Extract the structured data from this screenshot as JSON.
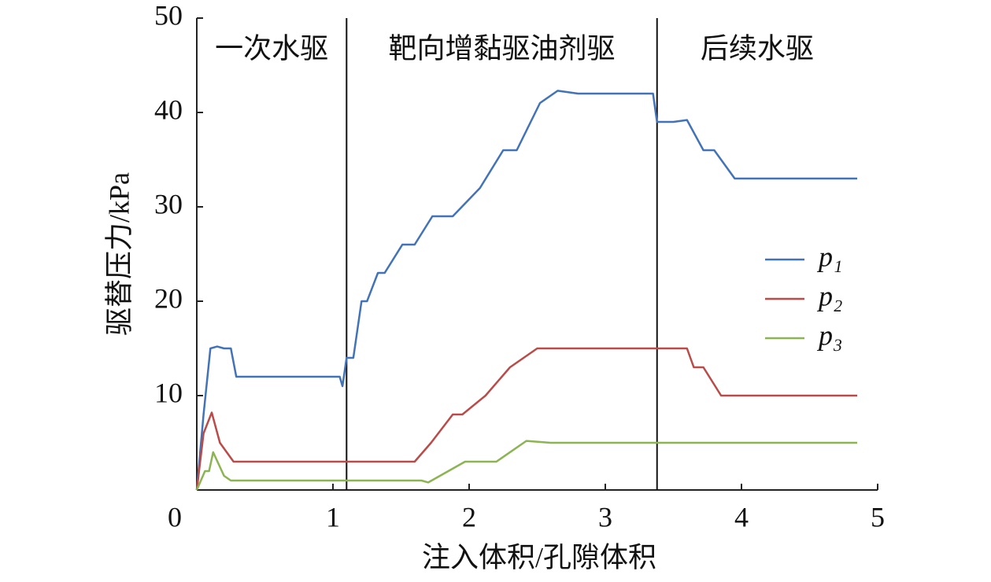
{
  "chart_data": {
    "type": "line",
    "xlabel": "注入体积/孔隙体积",
    "ylabel": "驱替压力/kPa",
    "xlim": [
      0,
      5
    ],
    "ylim": [
      0,
      50
    ],
    "xticks": [
      0,
      1,
      2,
      3,
      4,
      5
    ],
    "yticks": [
      10,
      20,
      30,
      40,
      50
    ],
    "phase_boundaries": [
      1.1,
      3.38
    ],
    "phase_labels": [
      "一次水驱",
      "靶向增黏驱油剂驱",
      "后续水驱"
    ],
    "series": [
      {
        "name": "p₁",
        "color": "#4273b8",
        "x": [
          0,
          0.05,
          0.1,
          0.15,
          0.2,
          0.25,
          0.29,
          0.35,
          1.05,
          1.07,
          1.1,
          1.15,
          1.21,
          1.25,
          1.33,
          1.38,
          1.51,
          1.6,
          1.73,
          1.88,
          2.08,
          2.25,
          2.35,
          2.52,
          2.65,
          2.8,
          3.3,
          3.35,
          3.38,
          3.5,
          3.6,
          3.72,
          3.8,
          3.95,
          4.1,
          4.85
        ],
        "values": [
          0,
          8,
          15,
          15.2,
          15,
          15,
          12,
          12,
          12,
          11,
          14,
          14,
          20,
          20,
          23,
          23,
          26,
          26,
          29,
          29,
          32,
          36,
          36,
          41,
          42.3,
          42,
          42,
          42,
          39,
          39,
          39.2,
          36,
          36,
          33,
          33,
          33
        ]
      },
      {
        "name": "p₂",
        "color": "#bb4b48",
        "x": [
          0,
          0.05,
          0.11,
          0.17,
          0.27,
          1.56,
          1.6,
          1.72,
          1.88,
          1.95,
          2.12,
          2.3,
          2.5,
          3.55,
          3.6,
          3.65,
          3.72,
          3.85,
          4.85
        ],
        "values": [
          0,
          6,
          8.2,
          5,
          3,
          3,
          3,
          5,
          8,
          8,
          10,
          13,
          15,
          15,
          15,
          13,
          13,
          10,
          10
        ]
      },
      {
        "name": "p₃",
        "color": "#8cb452",
        "x": [
          0,
          0.06,
          0.09,
          0.12,
          0.2,
          0.25,
          1.65,
          1.7,
          1.97,
          2.2,
          2.42,
          2.6,
          4.85
        ],
        "values": [
          0,
          2,
          2,
          4,
          1.5,
          1,
          1,
          0.8,
          3,
          3,
          5.2,
          5,
          5
        ]
      }
    ]
  }
}
